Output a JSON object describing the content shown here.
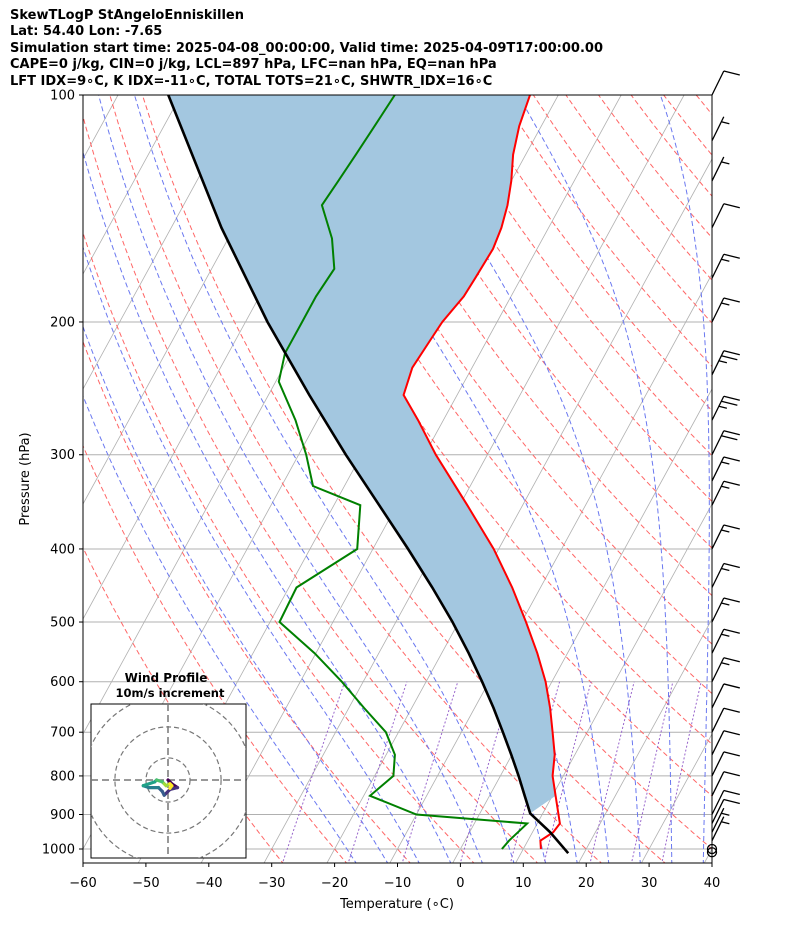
{
  "header": {
    "line1": "SkewTLogP StAngeloEnniskillen",
    "line2": "Lat: 54.40   Lon: -7.65",
    "line3": "Simulation start time: 2025-04-08_00:00:00, Valid time: 2025-04-09T17:00:00.00",
    "line4": "CAPE=0 j/kg, CIN=0 j/kg, LCL=897 hPa, LFC=nan hPa, EQ=nan hPa",
    "line5": "LFT IDX=9∘C, K IDX=-11∘C, TOTAL TOTS=21∘C, SHWTR_IDX=16∘C"
  },
  "chart_data": {
    "type": "skewt-logp",
    "xlabel": "Temperature (∘C)",
    "ylabel": "Pressure (hPa)",
    "xlim": [
      -60,
      40
    ],
    "ylim": [
      1050,
      100
    ],
    "x_ticks": [
      "−60",
      "−50",
      "−40",
      "−30",
      "−20",
      "−10",
      "0",
      "10",
      "20",
      "30",
      "40"
    ],
    "x_tick_values": [
      -60,
      -50,
      -40,
      -30,
      -20,
      -10,
      0,
      10,
      20,
      30,
      40
    ],
    "y_ticks": [
      "100",
      "200",
      "300",
      "400",
      "500",
      "600",
      "700",
      "800",
      "900",
      "1000"
    ],
    "y_tick_values": [
      100,
      200,
      300,
      400,
      500,
      600,
      700,
      800,
      900,
      1000
    ],
    "colors": {
      "temperature": "#ff0000",
      "dewpoint": "#008000",
      "parcel": "#000000",
      "cape_fill": "#a3c7e0",
      "dry_adiabats": "#ff6666",
      "moist_adiabats": "#6a78f0",
      "mixing_ratio": "#9966cc",
      "isotherms": "#b0b0b0"
    },
    "temperature": [
      {
        "p": 1000,
        "t": 12.8
      },
      {
        "p": 975,
        "t": 12.0
      },
      {
        "p": 950,
        "t": 13.3
      },
      {
        "p": 925,
        "t": 13.6
      },
      {
        "p": 900,
        "t": 12.6
      },
      {
        "p": 850,
        "t": 10.5
      },
      {
        "p": 800,
        "t": 8.3
      },
      {
        "p": 750,
        "t": 6.8
      },
      {
        "p": 700,
        "t": 4.5
      },
      {
        "p": 650,
        "t": 2.0
      },
      {
        "p": 600,
        "t": -1.0
      },
      {
        "p": 550,
        "t": -4.8
      },
      {
        "p": 500,
        "t": -9.3
      },
      {
        "p": 450,
        "t": -14.5
      },
      {
        "p": 400,
        "t": -20.8
      },
      {
        "p": 350,
        "t": -28.8
      },
      {
        "p": 300,
        "t": -38.2
      },
      {
        "p": 270,
        "t": -44.0
      },
      {
        "p": 250,
        "t": -48.5
      },
      {
        "p": 230,
        "t": -49.5
      },
      {
        "p": 210,
        "t": -49.0
      },
      {
        "p": 200,
        "t": -48.7
      },
      {
        "p": 185,
        "t": -47.5
      },
      {
        "p": 175,
        "t": -47.3
      },
      {
        "p": 160,
        "t": -47.0
      },
      {
        "p": 150,
        "t": -47.5
      },
      {
        "p": 140,
        "t": -48.5
      },
      {
        "p": 130,
        "t": -50.0
      },
      {
        "p": 120,
        "t": -52.0
      },
      {
        "p": 110,
        "t": -53.5
      },
      {
        "p": 100,
        "t": -54.5
      }
    ],
    "dewpoint": [
      {
        "p": 1000,
        "t": 6.6
      },
      {
        "p": 975,
        "t": 7.0
      },
      {
        "p": 950,
        "t": 7.7
      },
      {
        "p": 925,
        "t": 8.4
      },
      {
        "p": 900,
        "t": -10.0
      },
      {
        "p": 850,
        "t": -19.0
      },
      {
        "p": 800,
        "t": -17.0
      },
      {
        "p": 750,
        "t": -18.6
      },
      {
        "p": 700,
        "t": -22.0
      },
      {
        "p": 650,
        "t": -27.6
      },
      {
        "p": 600,
        "t": -33.4
      },
      {
        "p": 550,
        "t": -40.2
      },
      {
        "p": 500,
        "t": -48.5
      },
      {
        "p": 450,
        "t": -48.8
      },
      {
        "p": 400,
        "t": -42.5
      },
      {
        "p": 350,
        "t": -45.8
      },
      {
        "p": 330,
        "t": -55.0
      },
      {
        "p": 300,
        "t": -58.8
      },
      {
        "p": 270,
        "t": -63.5
      },
      {
        "p": 240,
        "t": -69.5
      },
      {
        "p": 220,
        "t": -71.0
      },
      {
        "p": 200,
        "t": -71.0
      },
      {
        "p": 185,
        "t": -71.0
      },
      {
        "p": 170,
        "t": -70.5
      },
      {
        "p": 155,
        "t": -73.5
      },
      {
        "p": 140,
        "t": -78.0
      },
      {
        "p": 130,
        "t": -77.5
      },
      {
        "p": 120,
        "t": -77.0
      },
      {
        "p": 110,
        "t": -76.5
      },
      {
        "p": 100,
        "t": -76.0
      }
    ],
    "parcel": [
      {
        "p": 1013,
        "t": 17.5
      },
      {
        "p": 950,
        "t": 12.8
      },
      {
        "p": 897,
        "t": 8.0
      },
      {
        "p": 850,
        "t": 5.6
      },
      {
        "p": 800,
        "t": 2.9
      },
      {
        "p": 750,
        "t": -0.1
      },
      {
        "p": 700,
        "t": -3.4
      },
      {
        "p": 650,
        "t": -7.0
      },
      {
        "p": 600,
        "t": -11.1
      },
      {
        "p": 550,
        "t": -15.7
      },
      {
        "p": 500,
        "t": -21.0
      },
      {
        "p": 450,
        "t": -27.2
      },
      {
        "p": 400,
        "t": -34.4
      },
      {
        "p": 350,
        "t": -42.8
      },
      {
        "p": 300,
        "t": -52.5
      },
      {
        "p": 250,
        "t": -63.5
      },
      {
        "p": 200,
        "t": -76.5
      },
      {
        "p": 150,
        "t": -92.0
      },
      {
        "p": 100,
        "t": -112.0
      }
    ],
    "wind_barbs": [
      {
        "p": 1010,
        "speed_kt": 0
      },
      {
        "p": 1000,
        "speed_kt": 0
      },
      {
        "p": 975,
        "speed_kt": 5
      },
      {
        "p": 950,
        "speed_kt": 5
      },
      {
        "p": 925,
        "speed_kt": 10
      },
      {
        "p": 900,
        "speed_kt": 10
      },
      {
        "p": 850,
        "speed_kt": 10
      },
      {
        "p": 800,
        "speed_kt": 10
      },
      {
        "p": 750,
        "speed_kt": 10
      },
      {
        "p": 700,
        "speed_kt": 10
      },
      {
        "p": 650,
        "speed_kt": 10
      },
      {
        "p": 600,
        "speed_kt": 15
      },
      {
        "p": 550,
        "speed_kt": 15
      },
      {
        "p": 500,
        "speed_kt": 15
      },
      {
        "p": 450,
        "speed_kt": 15
      },
      {
        "p": 400,
        "speed_kt": 15
      },
      {
        "p": 350,
        "speed_kt": 15
      },
      {
        "p": 325,
        "speed_kt": 15
      },
      {
        "p": 300,
        "speed_kt": 20
      },
      {
        "p": 270,
        "speed_kt": 25
      },
      {
        "p": 235,
        "speed_kt": 25
      },
      {
        "p": 200,
        "speed_kt": 15
      },
      {
        "p": 175,
        "speed_kt": 15
      },
      {
        "p": 150,
        "speed_kt": 10
      },
      {
        "p": 130,
        "speed_kt": 5
      },
      {
        "p": 115,
        "speed_kt": 5
      },
      {
        "p": 100,
        "speed_kt": 10
      }
    ],
    "hodograph": {
      "title": "Wind Profile",
      "subtitle": "10m/s increment",
      "points": [
        {
          "u": 0.0,
          "v": 0.0
        },
        {
          "u": 1.0,
          "v": -1.0
        },
        {
          "u": 2.5,
          "v": -2.0
        },
        {
          "u": 0.5,
          "v": -2.5
        },
        {
          "u": -1.0,
          "v": -4.0
        },
        {
          "u": -1.5,
          "v": -3.0
        },
        {
          "u": -2.5,
          "v": -2.0
        },
        {
          "u": -5.0,
          "v": -2.0
        },
        {
          "u": -6.5,
          "v": -1.5
        },
        {
          "u": -3.5,
          "v": -0.5
        },
        {
          "u": -3.0,
          "v": 0.0
        },
        {
          "u": -1.5,
          "v": -0.5
        },
        {
          "u": -1.0,
          "v": -1.0
        },
        {
          "u": -0.5,
          "v": -1.5
        },
        {
          "u": 0.5,
          "v": -1.0
        },
        {
          "u": 1.0,
          "v": -1.5
        },
        {
          "u": 0.5,
          "v": -2.2
        }
      ]
    }
  }
}
